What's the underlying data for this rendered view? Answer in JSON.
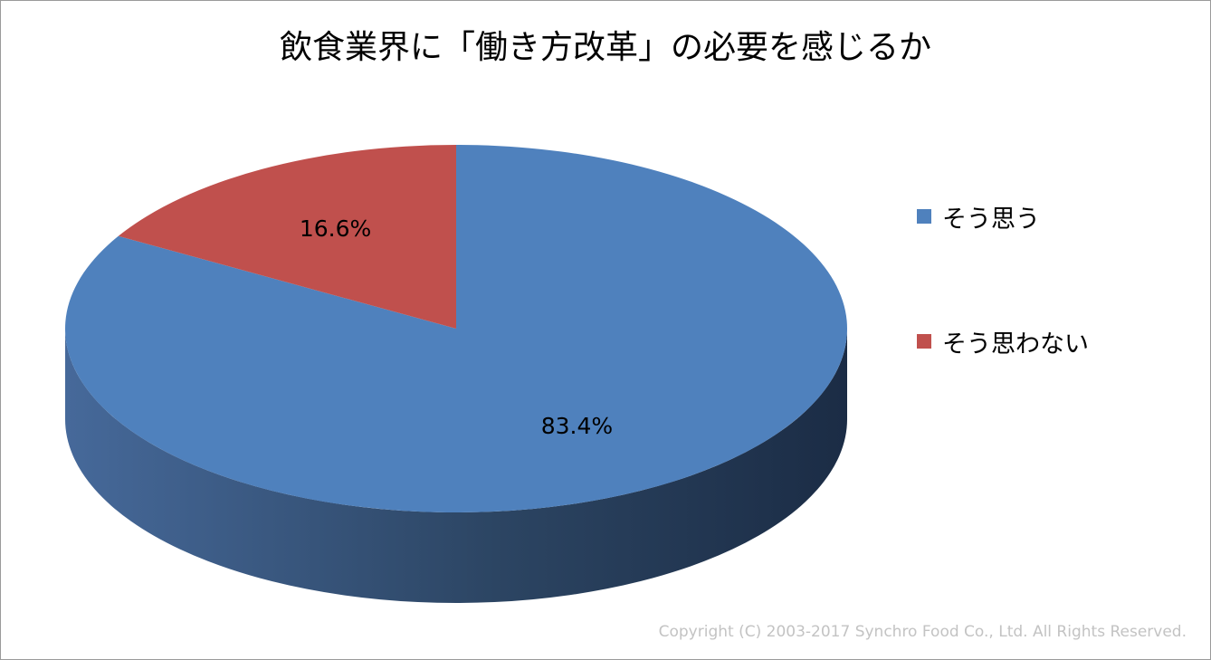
{
  "chart_data": {
    "type": "pie",
    "title": "飲食業界に「働き方改革」の必要を感じるか",
    "slices": [
      {
        "label": "そう思う",
        "value": 83.4,
        "value_label": "83.4%",
        "color": "#4F81BD"
      },
      {
        "label": "そう思わない",
        "value": 16.6,
        "value_label": "16.6%",
        "color": "#C0504D"
      }
    ],
    "legend_position": "right"
  },
  "footer": {
    "copyright": "Copyright (C) 2003-2017  Synchro Food Co., Ltd. All Rights Reserved."
  }
}
